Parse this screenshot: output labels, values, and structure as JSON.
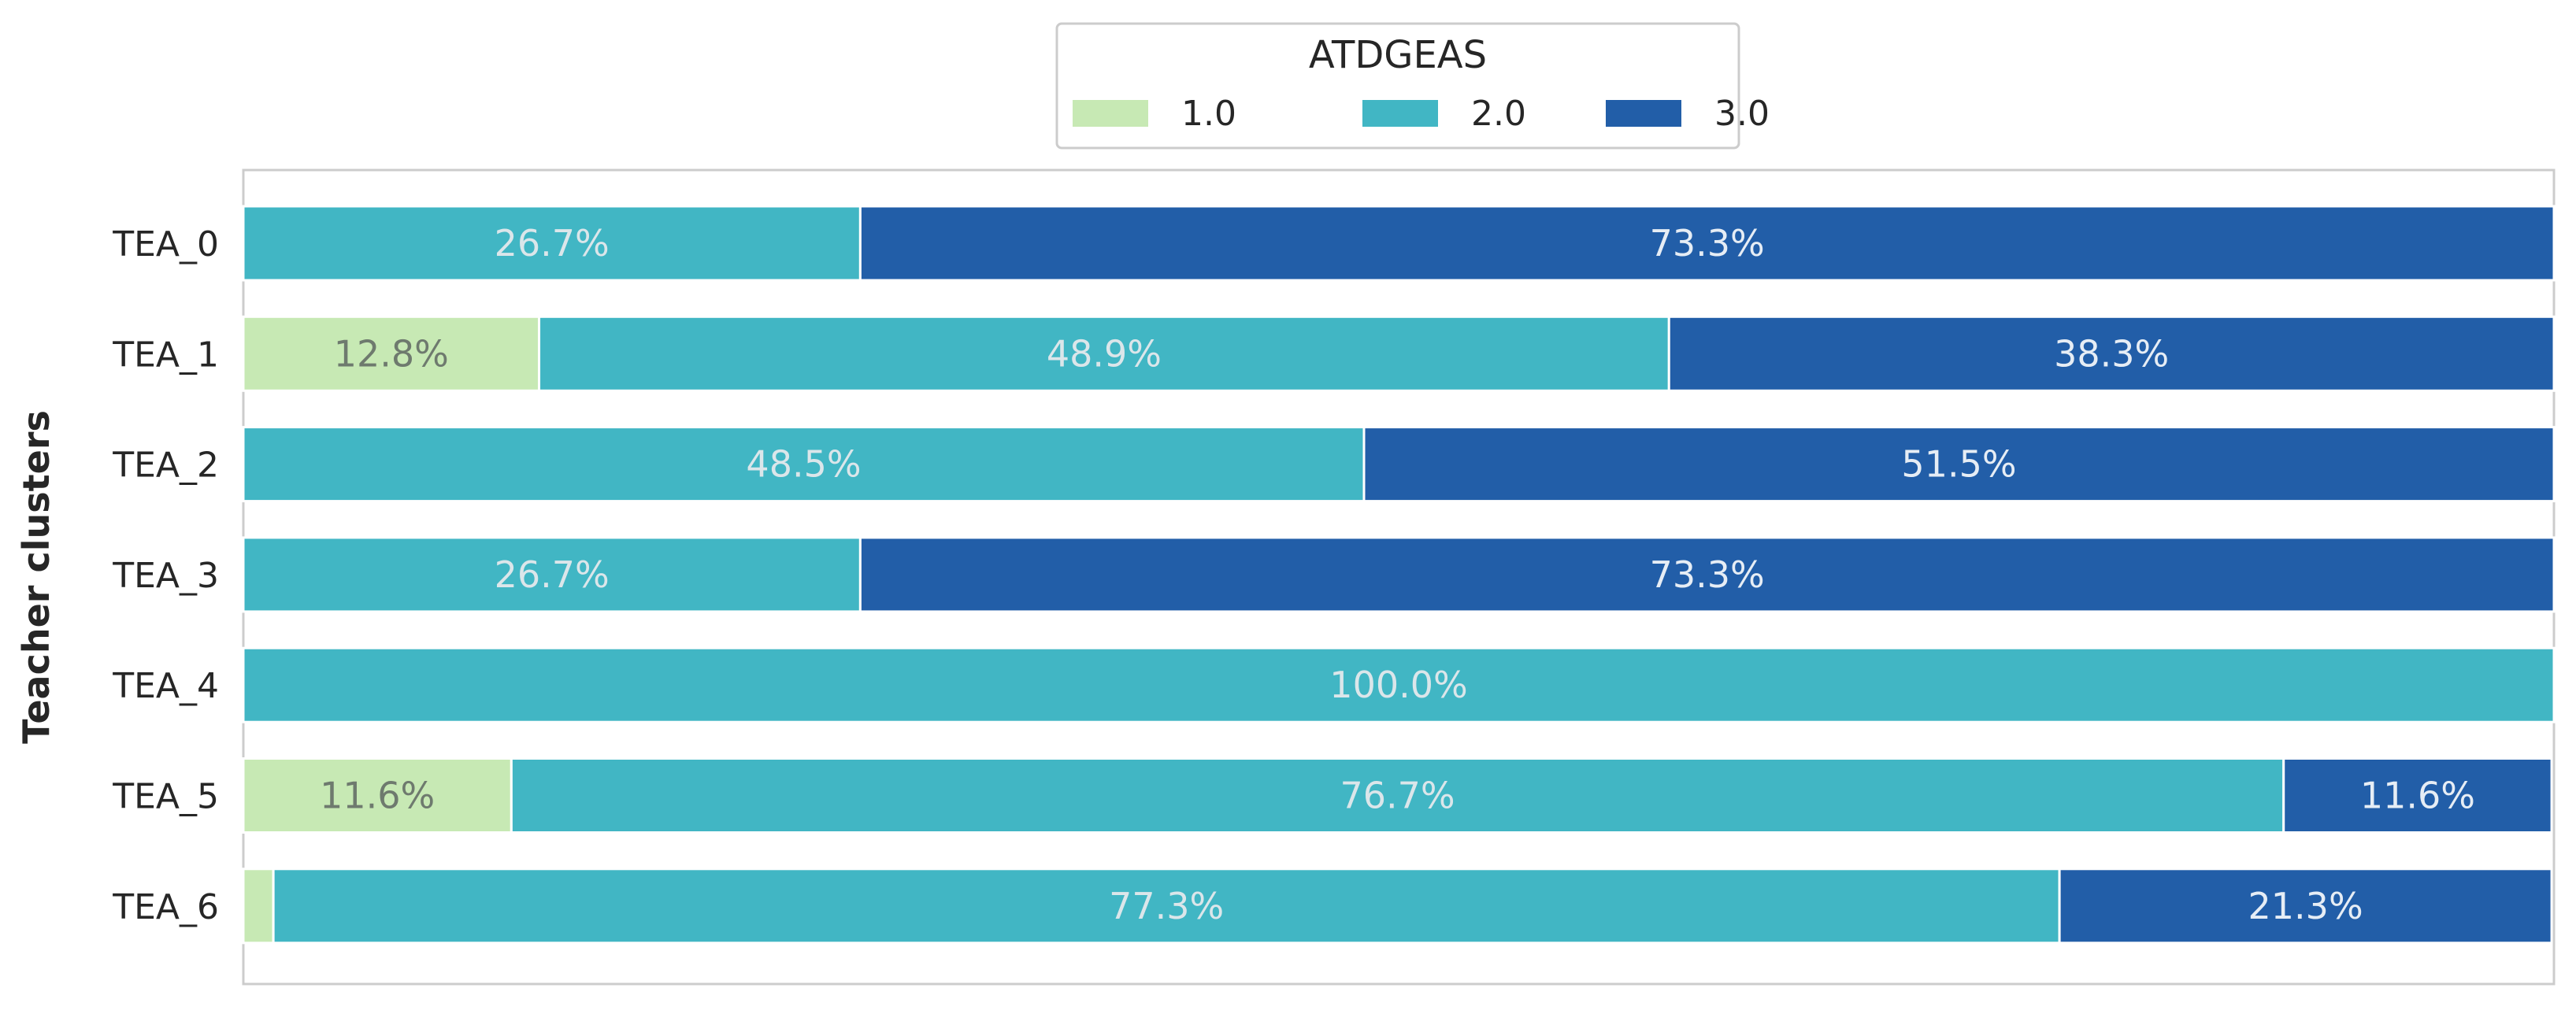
{
  "chart_data": {
    "type": "bar",
    "orientation": "horizontal",
    "stacked": true,
    "ylabel": "Teacher clusters",
    "xlabel": "",
    "xlim": [
      0,
      100
    ],
    "grid": false,
    "legend": {
      "title": "ATDGEAS",
      "placement": "top-center",
      "entries": [
        "1.0",
        "2.0",
        "3.0"
      ]
    },
    "categories": [
      "TEA_0",
      "TEA_1",
      "TEA_2",
      "TEA_3",
      "TEA_4",
      "TEA_5",
      "TEA_6"
    ],
    "series": [
      {
        "name": "1.0",
        "color": "#c7e9b4",
        "label_color": "#6e7a6e",
        "values": [
          0,
          12.8,
          0,
          0,
          0,
          11.6,
          1.3
        ],
        "labels": [
          "",
          "12.8%",
          "",
          "",
          "",
          "11.6%",
          ""
        ]
      },
      {
        "name": "2.0",
        "color": "#41b6c4",
        "label_color": "#dbe6ea",
        "values": [
          26.7,
          48.9,
          48.5,
          26.7,
          100.0,
          76.7,
          77.3
        ],
        "labels": [
          "26.7%",
          "48.9%",
          "48.5%",
          "26.7%",
          "100.0%",
          "76.7%",
          "77.3%"
        ]
      },
      {
        "name": "3.0",
        "color": "#225ea8",
        "label_color": "#e6edf5",
        "values": [
          73.3,
          38.3,
          51.5,
          73.3,
          0,
          11.6,
          21.3
        ],
        "labels": [
          "73.3%",
          "38.3%",
          "51.5%",
          "73.3%",
          "",
          "11.6%",
          "21.3%"
        ]
      }
    ]
  }
}
